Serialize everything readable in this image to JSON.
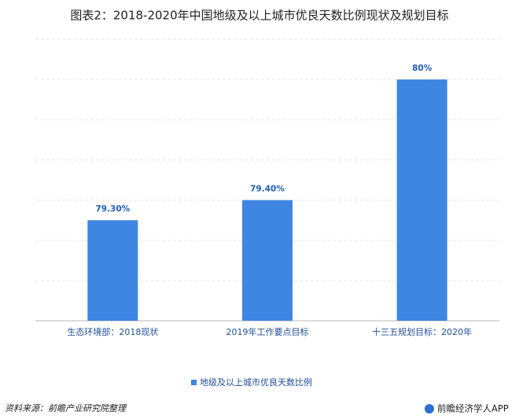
{
  "chart_data": {
    "type": "bar",
    "title": "图表2：2018-2020年中国地级及以上城市优良天数比例现状及规划目标",
    "categories": [
      "生态环境部：2018现状",
      "2019年工作要点目标",
      "十三五规划目标：2020年"
    ],
    "series": [
      {
        "name": "地级及以上城市优良天数比例",
        "color": "#3f86e2",
        "values": [
          79.3,
          79.4,
          80
        ],
        "value_labels": [
          "79.30%",
          "79.40%",
          "80%"
        ]
      }
    ],
    "ylim": [
      78.8,
      80.2
    ],
    "yticks": [
      78.8,
      79,
      79.2,
      79.4,
      79.6,
      79.8,
      80,
      80.2
    ],
    "grid": true,
    "source": "资料来源：前瞻产业研究院整理",
    "brand": "前瞻经济学人APP"
  }
}
